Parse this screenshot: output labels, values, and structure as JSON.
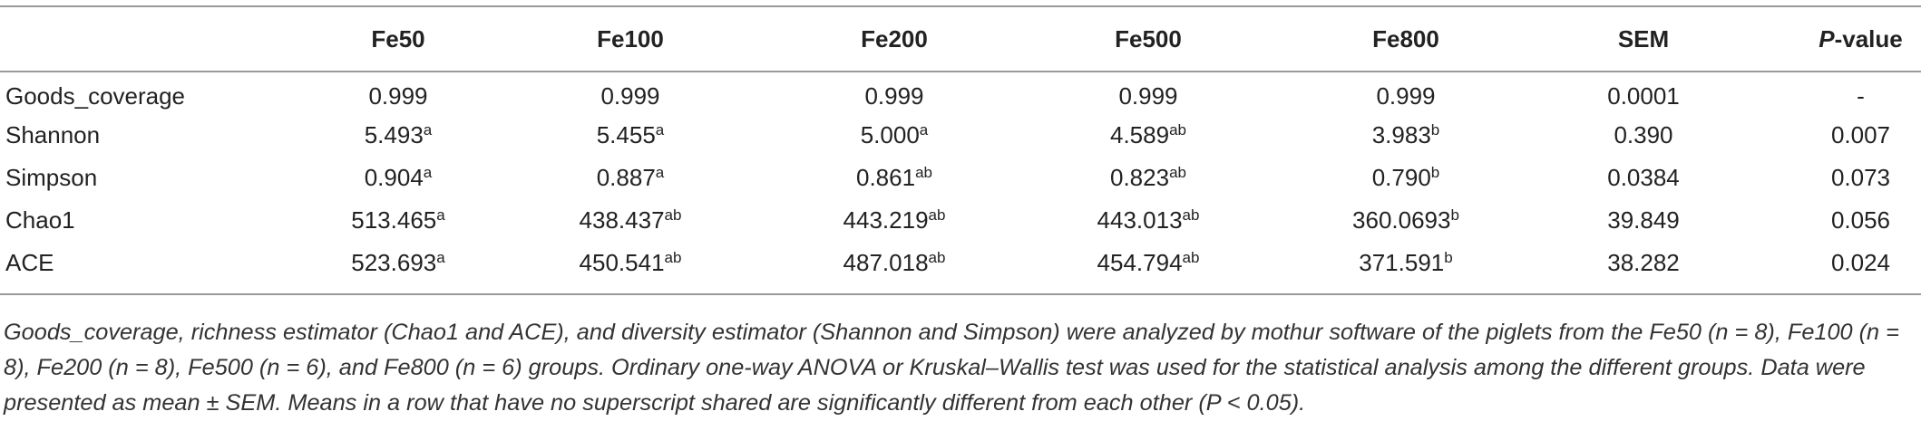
{
  "table": {
    "header": [
      "",
      "Fe50",
      "Fe100",
      "Fe200",
      "Fe500",
      "Fe800",
      "SEM",
      {
        "italic": "P",
        "text": "-value"
      }
    ],
    "rows": [
      {
        "label": "Goods_coverage",
        "cells": [
          "0.999",
          "0.999",
          "0.999",
          "0.999",
          "0.999",
          "0.0001",
          "-"
        ]
      },
      {
        "label": "Shannon",
        "cells": [
          {
            "value": "5.493",
            "sup": "a"
          },
          {
            "value": "5.455",
            "sup": "a"
          },
          {
            "value": "5.000",
            "sup": "a"
          },
          {
            "value": "4.589",
            "sup": "ab"
          },
          {
            "value": "3.983",
            "sup": "b"
          },
          "0.390",
          "0.007"
        ]
      },
      {
        "label": "Simpson",
        "cells": [
          {
            "value": "0.904",
            "sup": "a"
          },
          {
            "value": "0.887",
            "sup": "a"
          },
          {
            "value": "0.861",
            "sup": "ab"
          },
          {
            "value": "0.823",
            "sup": "ab"
          },
          {
            "value": "0.790",
            "sup": "b"
          },
          "0.0384",
          "0.073"
        ]
      },
      {
        "label": "Chao1",
        "cells": [
          {
            "value": "513.465",
            "sup": "a"
          },
          {
            "value": "438.437",
            "sup": "ab"
          },
          {
            "value": "443.219",
            "sup": "ab"
          },
          {
            "value": "443.013",
            "sup": "ab"
          },
          {
            "value": "360.0693",
            "sup": "b"
          },
          "39.849",
          "0.056"
        ]
      },
      {
        "label": "ACE",
        "cells": [
          {
            "value": "523.693",
            "sup": "a"
          },
          {
            "value": "450.541",
            "sup": "ab"
          },
          {
            "value": "487.018",
            "sup": "ab"
          },
          {
            "value": "454.794",
            "sup": "ab"
          },
          {
            "value": "371.591",
            "sup": "b"
          },
          "38.282",
          "0.024"
        ]
      }
    ],
    "footnote": "Goods_coverage, richness estimator (Chao1 and ACE), and diversity estimator (Shannon and Simpson) were analyzed by mothur software of the piglets from the Fe50 (n = 8), Fe100 (n = 8), Fe200 (n = 8), Fe500 (n = 6), and Fe800 (n = 6) groups. Ordinary one-way ANOVA or Kruskal–Wallis test was used for the statistical analysis among the different groups. Data were presented as mean ± SEM. Means in a row that have no superscript shared are significantly different from each other (P < 0.05)."
  }
}
